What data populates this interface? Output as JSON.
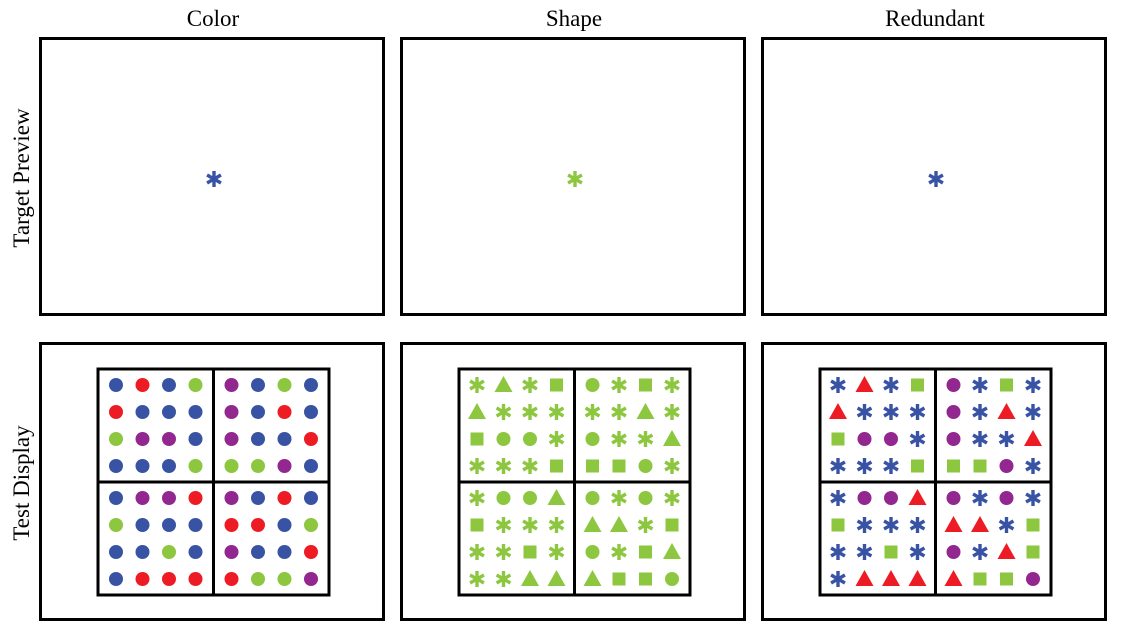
{
  "columns": [
    "Color",
    "Shape",
    "Redundant"
  ],
  "rows": [
    "Target Preview",
    "Test Display"
  ],
  "colors": {
    "B": "#3953a4",
    "R": "#ed1c24",
    "G": "#8dc63f",
    "P": "#92278f"
  },
  "targets": [
    {
      "shape": "asterisk",
      "color": "B"
    },
    {
      "shape": "asterisk",
      "color": "G"
    },
    {
      "shape": "asterisk",
      "color": "B"
    }
  ],
  "displays": [
    [
      [
        "cB",
        "cR",
        "cB",
        "cG",
        "cP",
        "cB",
        "cG",
        "cB"
      ],
      [
        "cR",
        "cB",
        "cB",
        "cB",
        "cP",
        "cB",
        "cR",
        "cB"
      ],
      [
        "cG",
        "cP",
        "cP",
        "cB",
        "cP",
        "cB",
        "cB",
        "cR"
      ],
      [
        "cB",
        "cB",
        "cB",
        "cG",
        "cG",
        "cG",
        "cP",
        "cB"
      ],
      [
        "cB",
        "cP",
        "cP",
        "cR",
        "cP",
        "cB",
        "cR",
        "cB"
      ],
      [
        "cG",
        "cB",
        "cB",
        "cB",
        "cR",
        "cR",
        "cB",
        "cG"
      ],
      [
        "cB",
        "cB",
        "cG",
        "cB",
        "cP",
        "cB",
        "cB",
        "cR"
      ],
      [
        "cB",
        "cR",
        "cR",
        "cR",
        "cR",
        "cG",
        "cG",
        "cP"
      ]
    ],
    [
      [
        "aG",
        "tG",
        "aG",
        "sG",
        "cG",
        "aG",
        "sG",
        "aG"
      ],
      [
        "tG",
        "aG",
        "aG",
        "aG",
        "aG",
        "aG",
        "tG",
        "aG"
      ],
      [
        "sG",
        "cG",
        "cG",
        "aG",
        "cG",
        "aG",
        "aG",
        "tG"
      ],
      [
        "aG",
        "aG",
        "aG",
        "sG",
        "sG",
        "sG",
        "cG",
        "aG"
      ],
      [
        "aG",
        "cG",
        "cG",
        "tG",
        "cG",
        "aG",
        "cG",
        "aG"
      ],
      [
        "sG",
        "aG",
        "aG",
        "aG",
        "tG",
        "tG",
        "aG",
        "sG"
      ],
      [
        "aG",
        "aG",
        "sG",
        "aG",
        "cG",
        "aG",
        "sG",
        "tG"
      ],
      [
        "aG",
        "aG",
        "tG",
        "tG",
        "tG",
        "sG",
        "sG",
        "cG"
      ]
    ],
    [
      [
        "aB",
        "tR",
        "aB",
        "sG",
        "cP",
        "aB",
        "sG",
        "aB"
      ],
      [
        "tR",
        "aB",
        "aB",
        "aB",
        "cP",
        "aB",
        "tR",
        "aB"
      ],
      [
        "sG",
        "cP",
        "cP",
        "aB",
        "cP",
        "aB",
        "aB",
        "tR"
      ],
      [
        "aB",
        "aB",
        "aB",
        "sG",
        "sG",
        "sG",
        "cP",
        "aB"
      ],
      [
        "aB",
        "cP",
        "cP",
        "tR",
        "cP",
        "aB",
        "cP",
        "aB"
      ],
      [
        "sG",
        "aB",
        "aB",
        "aB",
        "tR",
        "tR",
        "aB",
        "sG"
      ],
      [
        "aB",
        "aB",
        "sG",
        "aB",
        "cP",
        "aB",
        "tR",
        "sG"
      ],
      [
        "aB",
        "tR",
        "tR",
        "tR",
        "tR",
        "sG",
        "sG",
        "cP"
      ]
    ]
  ]
}
